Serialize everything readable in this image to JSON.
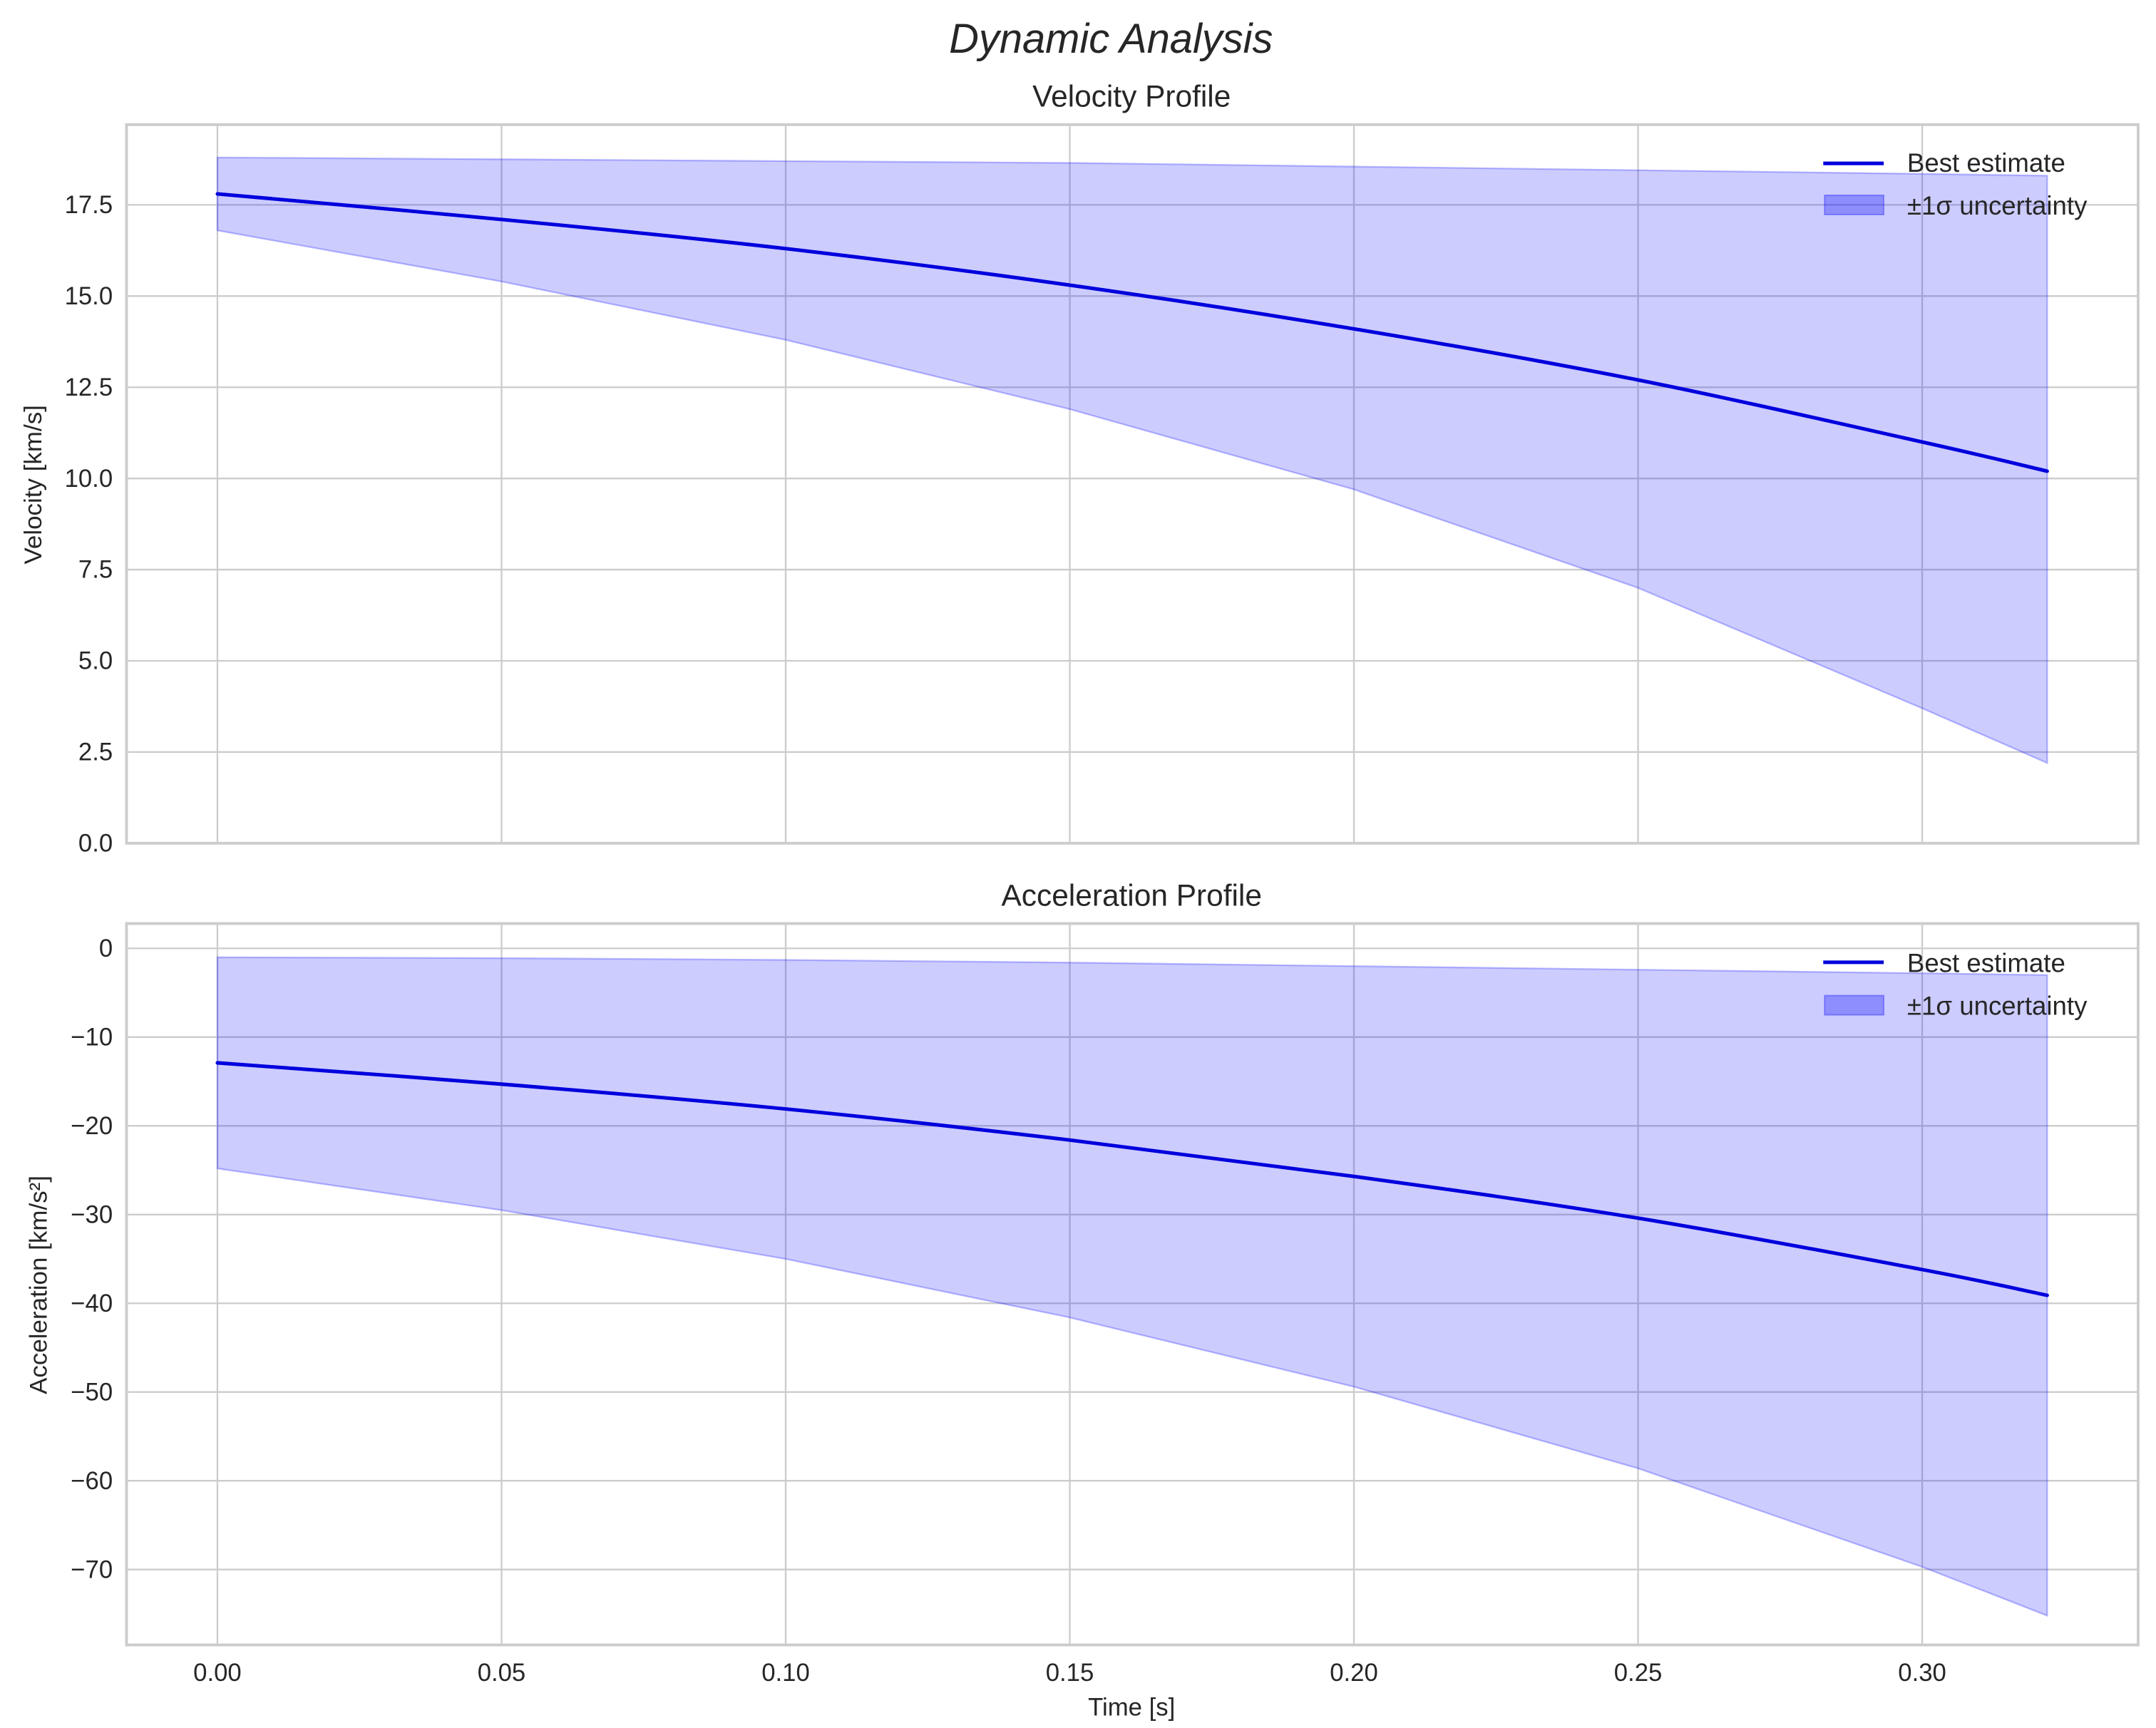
{
  "chart_data": {
    "suptitle": "Dynamic Analysis",
    "type": "line",
    "charts": [
      {
        "id": "velocity",
        "type": "line",
        "title": "Velocity Profile",
        "xlabel": "",
        "ylabel": "Velocity [km/s]",
        "xlim": [
          -0.016,
          0.338
        ],
        "ylim": [
          0,
          19.7
        ],
        "grid": true,
        "legend_position": "upper right",
        "xticks": [
          "0.00",
          "0.05",
          "0.10",
          "0.15",
          "0.20",
          "0.25",
          "0.30"
        ],
        "yticks": [
          "0.0",
          "2.5",
          "5.0",
          "7.5",
          "10.0",
          "12.5",
          "15.0",
          "17.5"
        ],
        "x": [
          0.0,
          0.05,
          0.1,
          0.15,
          0.2,
          0.25,
          0.3,
          0.322
        ],
        "series": [
          {
            "name": "Best estimate",
            "values": [
              17.8,
              17.1,
              16.3,
              15.3,
              14.1,
              12.7,
              11.0,
              10.2
            ],
            "color": "#0000dd"
          },
          {
            "name": "±1σ uncertainty",
            "type": "band",
            "upper": [
              18.8,
              18.75,
              18.7,
              18.65,
              18.55,
              18.45,
              18.35,
              18.3
            ],
            "lower": [
              16.8,
              15.4,
              13.8,
              11.9,
              9.7,
              7.0,
              3.7,
              2.2
            ],
            "color": "#0000ff",
            "alpha": 0.2
          }
        ]
      },
      {
        "id": "acceleration",
        "type": "line",
        "title": "Acceleration Profile",
        "xlabel": "Time [s]",
        "ylabel": "Acceleration [km/s²]",
        "xlim": [
          -0.016,
          0.338
        ],
        "ylim": [
          -78.5,
          2.8
        ],
        "grid": true,
        "legend_position": "upper right",
        "xticks": [
          "0.00",
          "0.05",
          "0.10",
          "0.15",
          "0.20",
          "0.25",
          "0.30"
        ],
        "yticks": [
          "0",
          "−10",
          "−20",
          "−30",
          "−40",
          "−50",
          "−60",
          "−70"
        ],
        "x": [
          0.0,
          0.05,
          0.1,
          0.15,
          0.2,
          0.25,
          0.3,
          0.322
        ],
        "series": [
          {
            "name": "Best estimate",
            "values": [
              -12.9,
              -15.3,
              -18.1,
              -21.6,
              -25.7,
              -30.4,
              -36.2,
              -39.1
            ],
            "color": "#0000dd"
          },
          {
            "name": "±1σ uncertainty",
            "type": "band",
            "upper": [
              -1.0,
              -1.1,
              -1.3,
              -1.6,
              -2.0,
              -2.4,
              -2.8,
              -3.0
            ],
            "lower": [
              -24.8,
              -29.5,
              -35.0,
              -41.6,
              -49.4,
              -58.6,
              -69.7,
              -75.2
            ],
            "color": "#0000ff",
            "alpha": 0.2
          }
        ]
      }
    ]
  },
  "legend": {
    "line_label": "Best estimate",
    "band_label": "±1σ uncertainty"
  }
}
